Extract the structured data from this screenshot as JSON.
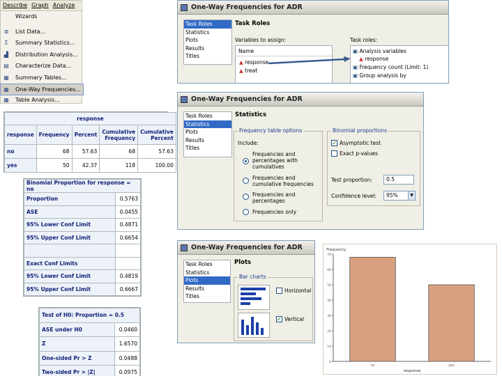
{
  "menu": {
    "bar": [
      "Describe",
      "Graph",
      "Analyze"
    ],
    "items": [
      {
        "label": "Wizards",
        "icon": ""
      },
      {
        "label": "List Data...",
        "icon": "list-icon"
      },
      {
        "label": "Summary Statistics...",
        "icon": "sigma-icon"
      },
      {
        "label": "Distribution Analysis...",
        "icon": "histogram-icon"
      },
      {
        "label": "Characterize Data...",
        "icon": "characterize-icon"
      },
      {
        "label": "Summary Tables...",
        "icon": "summary-table-icon"
      },
      {
        "label": "One-Way Frequencies...",
        "icon": "table-icon",
        "highlighted": true
      },
      {
        "label": "Table Analysis...",
        "icon": "table-analysis-icon"
      }
    ]
  },
  "freq_table": {
    "title": "response",
    "headers": [
      "response",
      "Frequency",
      "Percent",
      "Cumulative Frequency",
      "Cumulative Percent"
    ],
    "rows": [
      [
        "no",
        "68",
        "57.63",
        "68",
        "57.63"
      ],
      [
        "yes",
        "50",
        "42.37",
        "118",
        "100.00"
      ]
    ]
  },
  "binom_table": {
    "title": "Binomial Proportion for response = no",
    "rows": [
      [
        "Proportion",
        "0.5763"
      ],
      [
        "ASE",
        "0.0455"
      ],
      [
        "95% Lower Conf Limit",
        "0.4871"
      ],
      [
        "95% Upper Conf Limit",
        "0.6654"
      ],
      [
        "",
        ""
      ],
      [
        "Exact Conf Limits",
        ""
      ],
      [
        "95% Lower Conf Limit",
        "0.4819"
      ],
      [
        "95% Upper Conf Limit",
        "0.6667"
      ]
    ]
  },
  "test_table": {
    "title": "Test of H0: Proportion = 0.5",
    "rows": [
      [
        "ASE under H0",
        "0.0460"
      ],
      [
        "Z",
        "1.6570"
      ],
      [
        "One-sided Pr > Z",
        "0.0488"
      ],
      [
        "Two-sided Pr > |Z|",
        "0.0975"
      ]
    ]
  },
  "dialog1": {
    "title": "One-Way Frequencies for ADR",
    "nav": [
      "Task Roles",
      "Statistics",
      "Plots",
      "Results",
      "Titles"
    ],
    "selected": 0,
    "pane_title": "Task Roles",
    "vars_label": "Variables to assign:",
    "roles_label": "Task roles:",
    "name_header": "Name",
    "variables": [
      "response",
      "treat"
    ],
    "roles": [
      "Analysis variables",
      "response",
      "Frequency count (Limit: 1)",
      "Group analysis by"
    ]
  },
  "dialog2": {
    "title": "One-Way Frequencies for ADR",
    "nav": [
      "Task Roles",
      "Statistics",
      "Plots",
      "Results",
      "Titles"
    ],
    "selected": 1,
    "pane_title": "Statistics",
    "freq_group": "Frequency table options",
    "include_label": "Include:",
    "options": [
      "Frequencies and percentages with cumulatives",
      "Frequencies and cumulative frequencies",
      "Frequencies and percentages",
      "Frequencies only"
    ],
    "binom_group": "Binomial proportions",
    "asymptotic": "Asymptotic test",
    "exact": "Exact p-values",
    "test_prop_label": "Test proportion:",
    "test_prop_value": "0.5",
    "conf_label": "Confidence level:",
    "conf_value": "95%"
  },
  "dialog3": {
    "title": "One-Way Frequencies for ADR",
    "nav": [
      "Task Roles",
      "Statistics",
      "Plots",
      "Results",
      "Titles"
    ],
    "selected": 2,
    "pane_title": "Plots",
    "bar_group": "Bar charts",
    "horizontal": "Horizontal",
    "vertical": "Vertical"
  },
  "chart_data": {
    "type": "bar",
    "categories": [
      "no",
      "yes"
    ],
    "values": [
      68,
      50
    ],
    "ylabel": "Frequency",
    "xlabel": "response",
    "ylim": [
      0,
      70
    ],
    "yticks": [
      0,
      10,
      20,
      30,
      40,
      50,
      60,
      70
    ],
    "bar_color": "#d8a080"
  }
}
